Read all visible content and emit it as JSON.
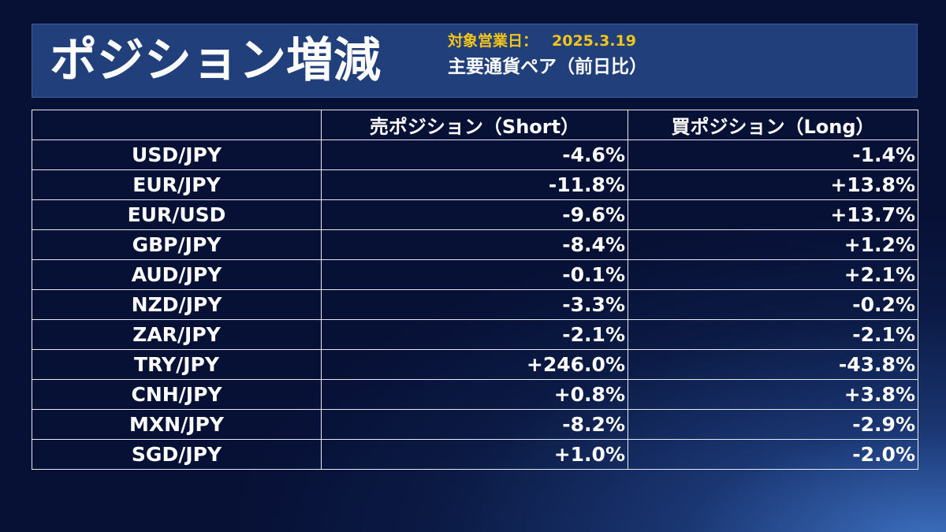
{
  "header": {
    "title": "ポジション増減",
    "date_label": "対象営業日：",
    "date_value": "2025.3.19",
    "subtitle": "主要通貨ペア（前日比）"
  },
  "table": {
    "columns": [
      "",
      "売ポジション（Short）",
      "買ポジション（Long）"
    ],
    "rows": [
      {
        "pair": "USD/JPY",
        "short": "-4.6%",
        "long": "-1.4%"
      },
      {
        "pair": "EUR/JPY",
        "short": "-11.8%",
        "long": "+13.8%"
      },
      {
        "pair": "EUR/USD",
        "short": "-9.6%",
        "long": "+13.7%"
      },
      {
        "pair": "GBP/JPY",
        "short": "-8.4%",
        "long": "+1.2%"
      },
      {
        "pair": "AUD/JPY",
        "short": "-0.1%",
        "long": "+2.1%"
      },
      {
        "pair": "NZD/JPY",
        "short": "-3.3%",
        "long": "-0.2%"
      },
      {
        "pair": "ZAR/JPY",
        "short": "-2.1%",
        "long": "-2.1%"
      },
      {
        "pair": "TRY/JPY",
        "short": "+246.0%",
        "long": "-43.8%"
      },
      {
        "pair": "CNH/JPY",
        "short": "+0.8%",
        "long": "+3.8%"
      },
      {
        "pair": "MXN/JPY",
        "short": "-8.2%",
        "long": "-2.9%"
      },
      {
        "pair": "SGD/JPY",
        "short": "+1.0%",
        "long": "-2.0%"
      }
    ]
  },
  "chart_data": {
    "type": "table",
    "title": "ポジション増減",
    "subtitle": "主要通貨ペア（前日比）",
    "columns": [
      "",
      "売ポジション（Short）",
      "買ポジション（Long）"
    ],
    "categories": [
      "USD/JPY",
      "EUR/JPY",
      "EUR/USD",
      "GBP/JPY",
      "AUD/JPY",
      "NZD/JPY",
      "ZAR/JPY",
      "TRY/JPY",
      "CNH/JPY",
      "MXN/JPY",
      "SGD/JPY"
    ],
    "series": [
      {
        "name": "売ポジション（Short）",
        "values": [
          -4.6,
          -11.8,
          -9.6,
          -8.4,
          -0.1,
          -3.3,
          -2.1,
          246.0,
          0.8,
          -8.2,
          1.0
        ]
      },
      {
        "name": "買ポジション（Long）",
        "values": [
          -1.4,
          13.8,
          13.7,
          1.2,
          2.1,
          -0.2,
          -2.1,
          -43.8,
          3.8,
          -2.9,
          -2.0
        ]
      }
    ]
  },
  "colors": {
    "background": "#071035",
    "header_panel": "#203f7b",
    "date_accent": "#f5c518",
    "text": "#ffffff",
    "grid_line": "#e8ecf5"
  }
}
